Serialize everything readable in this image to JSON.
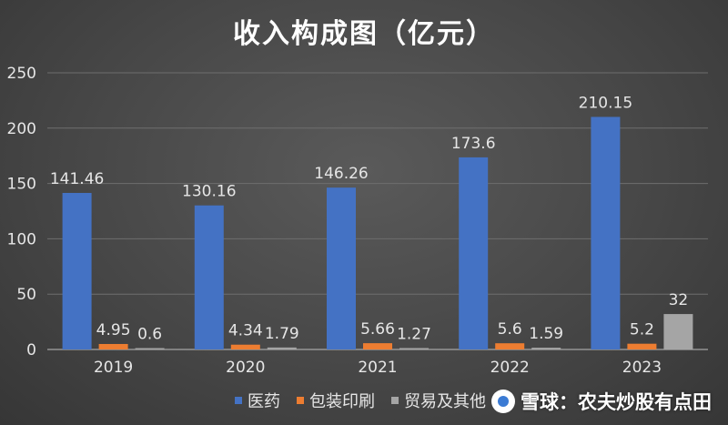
{
  "chart_data": {
    "type": "bar",
    "title": "收入构成图（亿元）",
    "categories": [
      "2019",
      "2020",
      "2021",
      "2022",
      "2023"
    ],
    "series": [
      {
        "name": "医药",
        "values": [
          141.46,
          130.16,
          146.26,
          173.6,
          210.15
        ],
        "labels": [
          "141.46",
          "130.16",
          "146.26",
          "173.6",
          "210.15"
        ],
        "color": "#4472c4"
      },
      {
        "name": "包装印刷",
        "values": [
          4.95,
          4.34,
          5.66,
          5.6,
          5.2
        ],
        "labels": [
          "4.95",
          "4.34",
          "5.66",
          "5.6",
          "5.2"
        ],
        "color": "#ed7d31"
      },
      {
        "name": "贸易及其他",
        "values": [
          0.6,
          1.79,
          1.27,
          1.59,
          32
        ],
        "labels": [
          "0.6",
          "1.79",
          "1.27",
          "1.59",
          "32"
        ],
        "color": "#a5a5a5"
      }
    ],
    "ylim": [
      0,
      250
    ],
    "yticks": [
      "0",
      "50",
      "100",
      "150",
      "200",
      "250"
    ],
    "grid": true,
    "legend_position": "bottom"
  },
  "watermark": {
    "text": "雪球：农夫炒股有点田"
  }
}
